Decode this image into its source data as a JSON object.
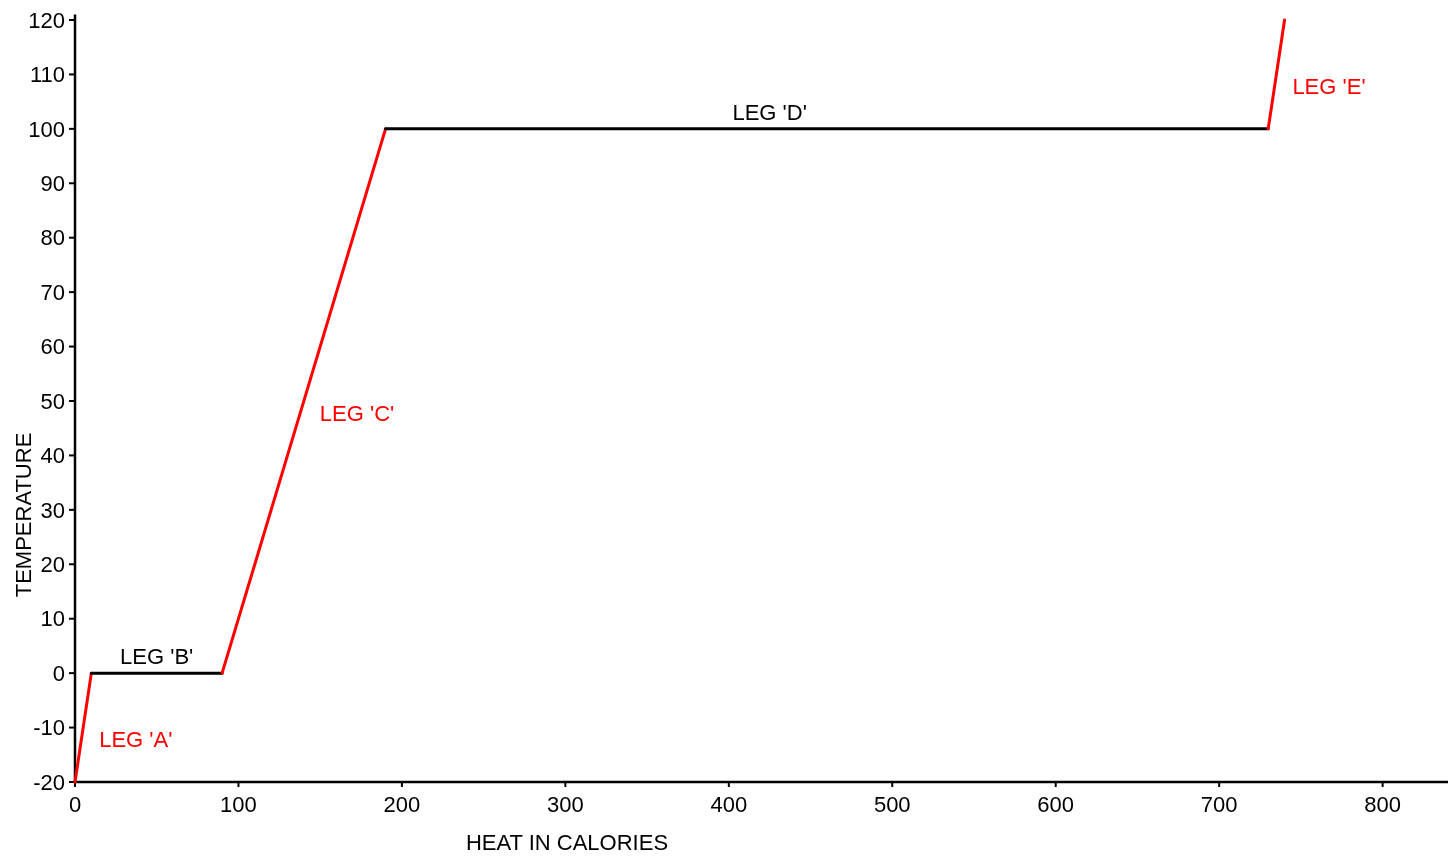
{
  "chart_data": {
    "type": "line",
    "xlabel": "HEAT IN CALORIES",
    "ylabel": "TEMPERATURE",
    "xlim": [
      0,
      840
    ],
    "ylim": [
      -20,
      121
    ],
    "xticks": [
      0,
      100,
      200,
      300,
      400,
      500,
      600,
      700,
      800
    ],
    "yticks": [
      -20,
      -10,
      0,
      10,
      20,
      30,
      40,
      50,
      60,
      70,
      80,
      90,
      100,
      110,
      120
    ],
    "grid": false,
    "marker": "none",
    "line_style": "solid",
    "annotations": [
      {
        "text": "LEG 'A'",
        "x": 5,
        "y": -10
      },
      {
        "text": "LEG 'B'",
        "x": 50,
        "y": 0
      },
      {
        "text": "LEG 'C'",
        "x": 140,
        "y": 50
      },
      {
        "text": "LEG 'D'",
        "x": 425,
        "y": 100
      },
      {
        "text": "LEG 'E'",
        "x": 735,
        "y": 110
      }
    ],
    "series": [
      {
        "color": "#ff0000",
        "x": [
          0,
          10
        ],
        "values": [
          -20,
          0
        ]
      },
      {
        "color": "#000000",
        "x": [
          10,
          90
        ],
        "values": [
          0,
          0
        ]
      },
      {
        "color": "#ff0000",
        "x": [
          90,
          190
        ],
        "values": [
          0,
          100
        ]
      },
      {
        "color": "#000000",
        "x": [
          190,
          730
        ],
        "values": [
          100,
          100
        ]
      },
      {
        "color": "#ff0000",
        "x": [
          730,
          740
        ],
        "values": [
          100,
          120
        ]
      }
    ]
  }
}
